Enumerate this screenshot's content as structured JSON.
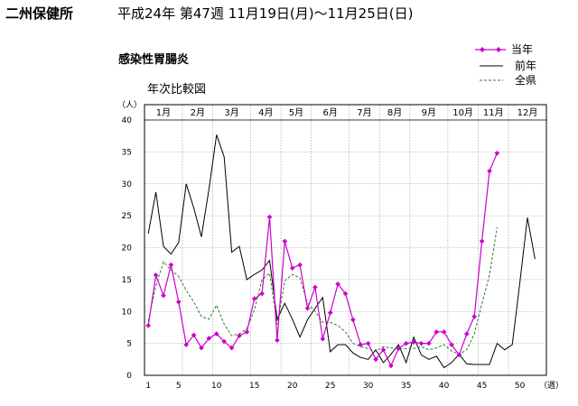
{
  "header": {
    "office": "二州保健所",
    "period": "平成24年  第47週  11月19日(月)～11月25日(日)"
  },
  "disease": "感染性胃腸炎",
  "subtitle": "年次比較図",
  "colors": {
    "current": "#cc00cc",
    "previous": "#000000",
    "prefecture": "#2f7a2f",
    "grid": "#999999"
  },
  "chart_data": {
    "type": "line",
    "y_unit_label": "（人）",
    "x_unit_label": "（週）",
    "ylim": [
      0,
      40
    ],
    "y_ticks": [
      0,
      5,
      10,
      15,
      20,
      25,
      30,
      35,
      40
    ],
    "xlim": [
      1,
      53
    ],
    "x_ticks": [
      1,
      5,
      10,
      15,
      20,
      25,
      30,
      35,
      40,
      45,
      50
    ],
    "month_labels": [
      "1月",
      "2月",
      "3月",
      "4月",
      "5月",
      "6月",
      "7月",
      "8月",
      "9月",
      "10月",
      "11月",
      "12月"
    ],
    "month_boundaries_weeks": [
      5,
      9,
      14,
      18,
      22,
      27,
      31,
      35,
      40,
      44,
      48
    ],
    "grid": true,
    "legend_position": "top-right",
    "series": [
      {
        "name": "当年",
        "style": "solid-markers",
        "x": [
          1,
          2,
          3,
          4,
          5,
          6,
          7,
          8,
          9,
          10,
          11,
          12,
          13,
          14,
          15,
          16,
          17,
          18,
          19,
          20,
          21,
          22,
          23,
          24,
          25,
          26,
          27,
          28,
          29,
          30,
          31,
          32,
          33,
          34,
          35,
          36,
          37,
          38,
          39,
          40,
          41,
          42,
          43,
          44,
          45,
          46,
          47
        ],
        "y": [
          7.8,
          15.7,
          12.5,
          17.3,
          11.5,
          4.8,
          6.3,
          4.3,
          5.8,
          6.5,
          5.3,
          4.3,
          6.2,
          6.8,
          12.0,
          12.8,
          24.8,
          5.5,
          21.0,
          16.8,
          17.3,
          10.5,
          13.8,
          5.7,
          9.8,
          14.3,
          12.8,
          8.7,
          4.8,
          5.0,
          2.5,
          4.0,
          1.5,
          4.2,
          5.0,
          5.2,
          5.0,
          5.0,
          6.8,
          6.8,
          4.8,
          3.2,
          6.5,
          9.2,
          21.0,
          32.0,
          34.8
        ]
      },
      {
        "name": "前年",
        "style": "solid",
        "x": [
          1,
          2,
          3,
          4,
          5,
          6,
          7,
          8,
          9,
          10,
          11,
          12,
          13,
          14,
          15,
          16,
          17,
          18,
          19,
          20,
          21,
          22,
          23,
          24,
          25,
          26,
          27,
          28,
          29,
          30,
          31,
          32,
          33,
          34,
          35,
          36,
          37,
          38,
          39,
          40,
          41,
          42,
          43,
          44,
          45,
          46,
          47,
          48,
          49,
          50,
          51,
          52
        ],
        "y": [
          22.2,
          28.7,
          20.2,
          19.0,
          20.8,
          30.0,
          26.2,
          21.7,
          29.2,
          37.7,
          34.2,
          19.3,
          20.2,
          15.0,
          15.8,
          16.5,
          18.0,
          8.8,
          11.3,
          8.8,
          6.0,
          8.7,
          10.5,
          12.2,
          3.7,
          4.8,
          4.8,
          3.5,
          2.8,
          2.5,
          4.0,
          2.0,
          3.3,
          4.8,
          2.0,
          6.0,
          3.2,
          2.5,
          3.0,
          1.2,
          2.0,
          3.3,
          1.8,
          1.7,
          1.7,
          1.7,
          5.0,
          4.0,
          4.8,
          14.5,
          24.7,
          18.2
        ]
      },
      {
        "name": "全県",
        "style": "dashed",
        "x": [
          1,
          2,
          3,
          4,
          5,
          6,
          7,
          8,
          9,
          10,
          11,
          12,
          13,
          14,
          15,
          16,
          17,
          18,
          19,
          20,
          21,
          22,
          23,
          24,
          25,
          26,
          27,
          28,
          29,
          30,
          31,
          32,
          33,
          34,
          35,
          36,
          37,
          38,
          39,
          40,
          41,
          42,
          43,
          44,
          45,
          46,
          47
        ],
        "y": [
          8.5,
          14.0,
          17.8,
          16.5,
          15.5,
          13.3,
          11.5,
          9.2,
          8.8,
          11.0,
          8.0,
          6.2,
          6.5,
          7.3,
          10.2,
          15.0,
          16.0,
          8.0,
          14.8,
          15.8,
          15.3,
          11.3,
          10.0,
          8.3,
          8.3,
          7.8,
          6.8,
          5.0,
          4.5,
          4.2,
          3.8,
          4.5,
          4.3,
          4.2,
          4.2,
          4.2,
          4.5,
          4.0,
          4.3,
          4.8,
          3.8,
          3.3,
          4.0,
          6.5,
          11.2,
          15.7,
          23.2
        ]
      }
    ]
  }
}
